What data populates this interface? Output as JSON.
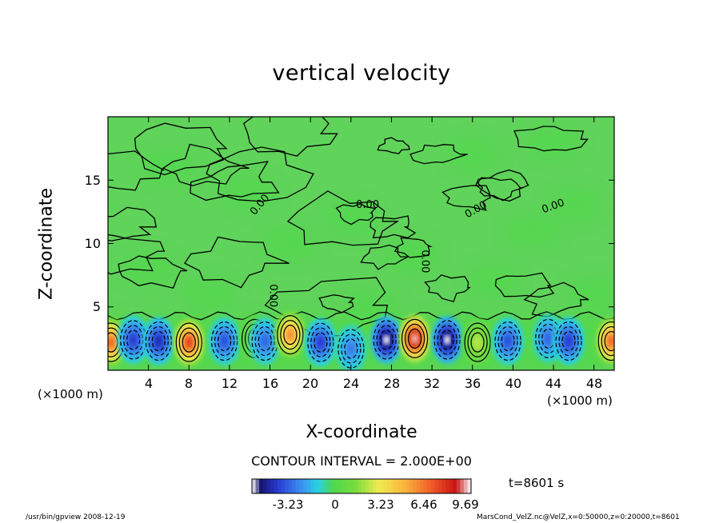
{
  "chart_data": {
    "type": "heatmap",
    "title": "vertical velocity",
    "xlabel": "X-coordinate",
    "ylabel": "Z-coordinate",
    "x_unit": "(×1000 m)",
    "y_unit": "(×1000 m)",
    "xlim": [
      0,
      50
    ],
    "ylim": [
      0,
      20
    ],
    "xticks": [
      "4",
      "8",
      "12",
      "16",
      "20",
      "24",
      "28",
      "32",
      "36",
      "40",
      "44",
      "48"
    ],
    "yticks": [
      "5",
      "10",
      "15"
    ],
    "contour_interval_text": "CONTOUR INTERVAL = 2.000E+00",
    "contour_label": "0.00",
    "colorbar": {
      "ticks": [
        "-3.23",
        "0",
        "3.23",
        "6.46",
        "9.69"
      ],
      "range": [
        -6.5,
        11.3
      ]
    },
    "time_text": "t=8601 s",
    "features": [
      {
        "x": 0.3,
        "z": 2.2,
        "value": 8.0
      },
      {
        "x": 2.5,
        "z": 2.4,
        "value": -4.5
      },
      {
        "x": 5.0,
        "z": 2.3,
        "value": -5.0
      },
      {
        "x": 8.0,
        "z": 2.2,
        "value": 9.0
      },
      {
        "x": 11.5,
        "z": 2.3,
        "value": -4.0
      },
      {
        "x": 14.5,
        "z": 2.5,
        "value": 2.0
      },
      {
        "x": 15.5,
        "z": 2.3,
        "value": -3.5
      },
      {
        "x": 18.0,
        "z": 2.8,
        "value": 7.0
      },
      {
        "x": 21.0,
        "z": 2.2,
        "value": -4.5
      },
      {
        "x": 24.0,
        "z": 1.7,
        "value": -3.0
      },
      {
        "x": 27.5,
        "z": 2.4,
        "value": -6.5
      },
      {
        "x": 30.3,
        "z": 2.5,
        "value": 11.0
      },
      {
        "x": 33.5,
        "z": 2.4,
        "value": -6.5
      },
      {
        "x": 36.5,
        "z": 2.2,
        "value": 3.0
      },
      {
        "x": 39.5,
        "z": 2.3,
        "value": -4.0
      },
      {
        "x": 43.5,
        "z": 2.5,
        "value": -3.5
      },
      {
        "x": 45.5,
        "z": 2.3,
        "value": -4.5
      },
      {
        "x": 49.7,
        "z": 2.3,
        "value": 8.0
      }
    ]
  },
  "footer": {
    "left": "/usr/bin/gpview   2008-12-19",
    "right": "MarsCond_VelZ.nc@VelZ,x=0:50000,z=0:20000,t=8601"
  }
}
